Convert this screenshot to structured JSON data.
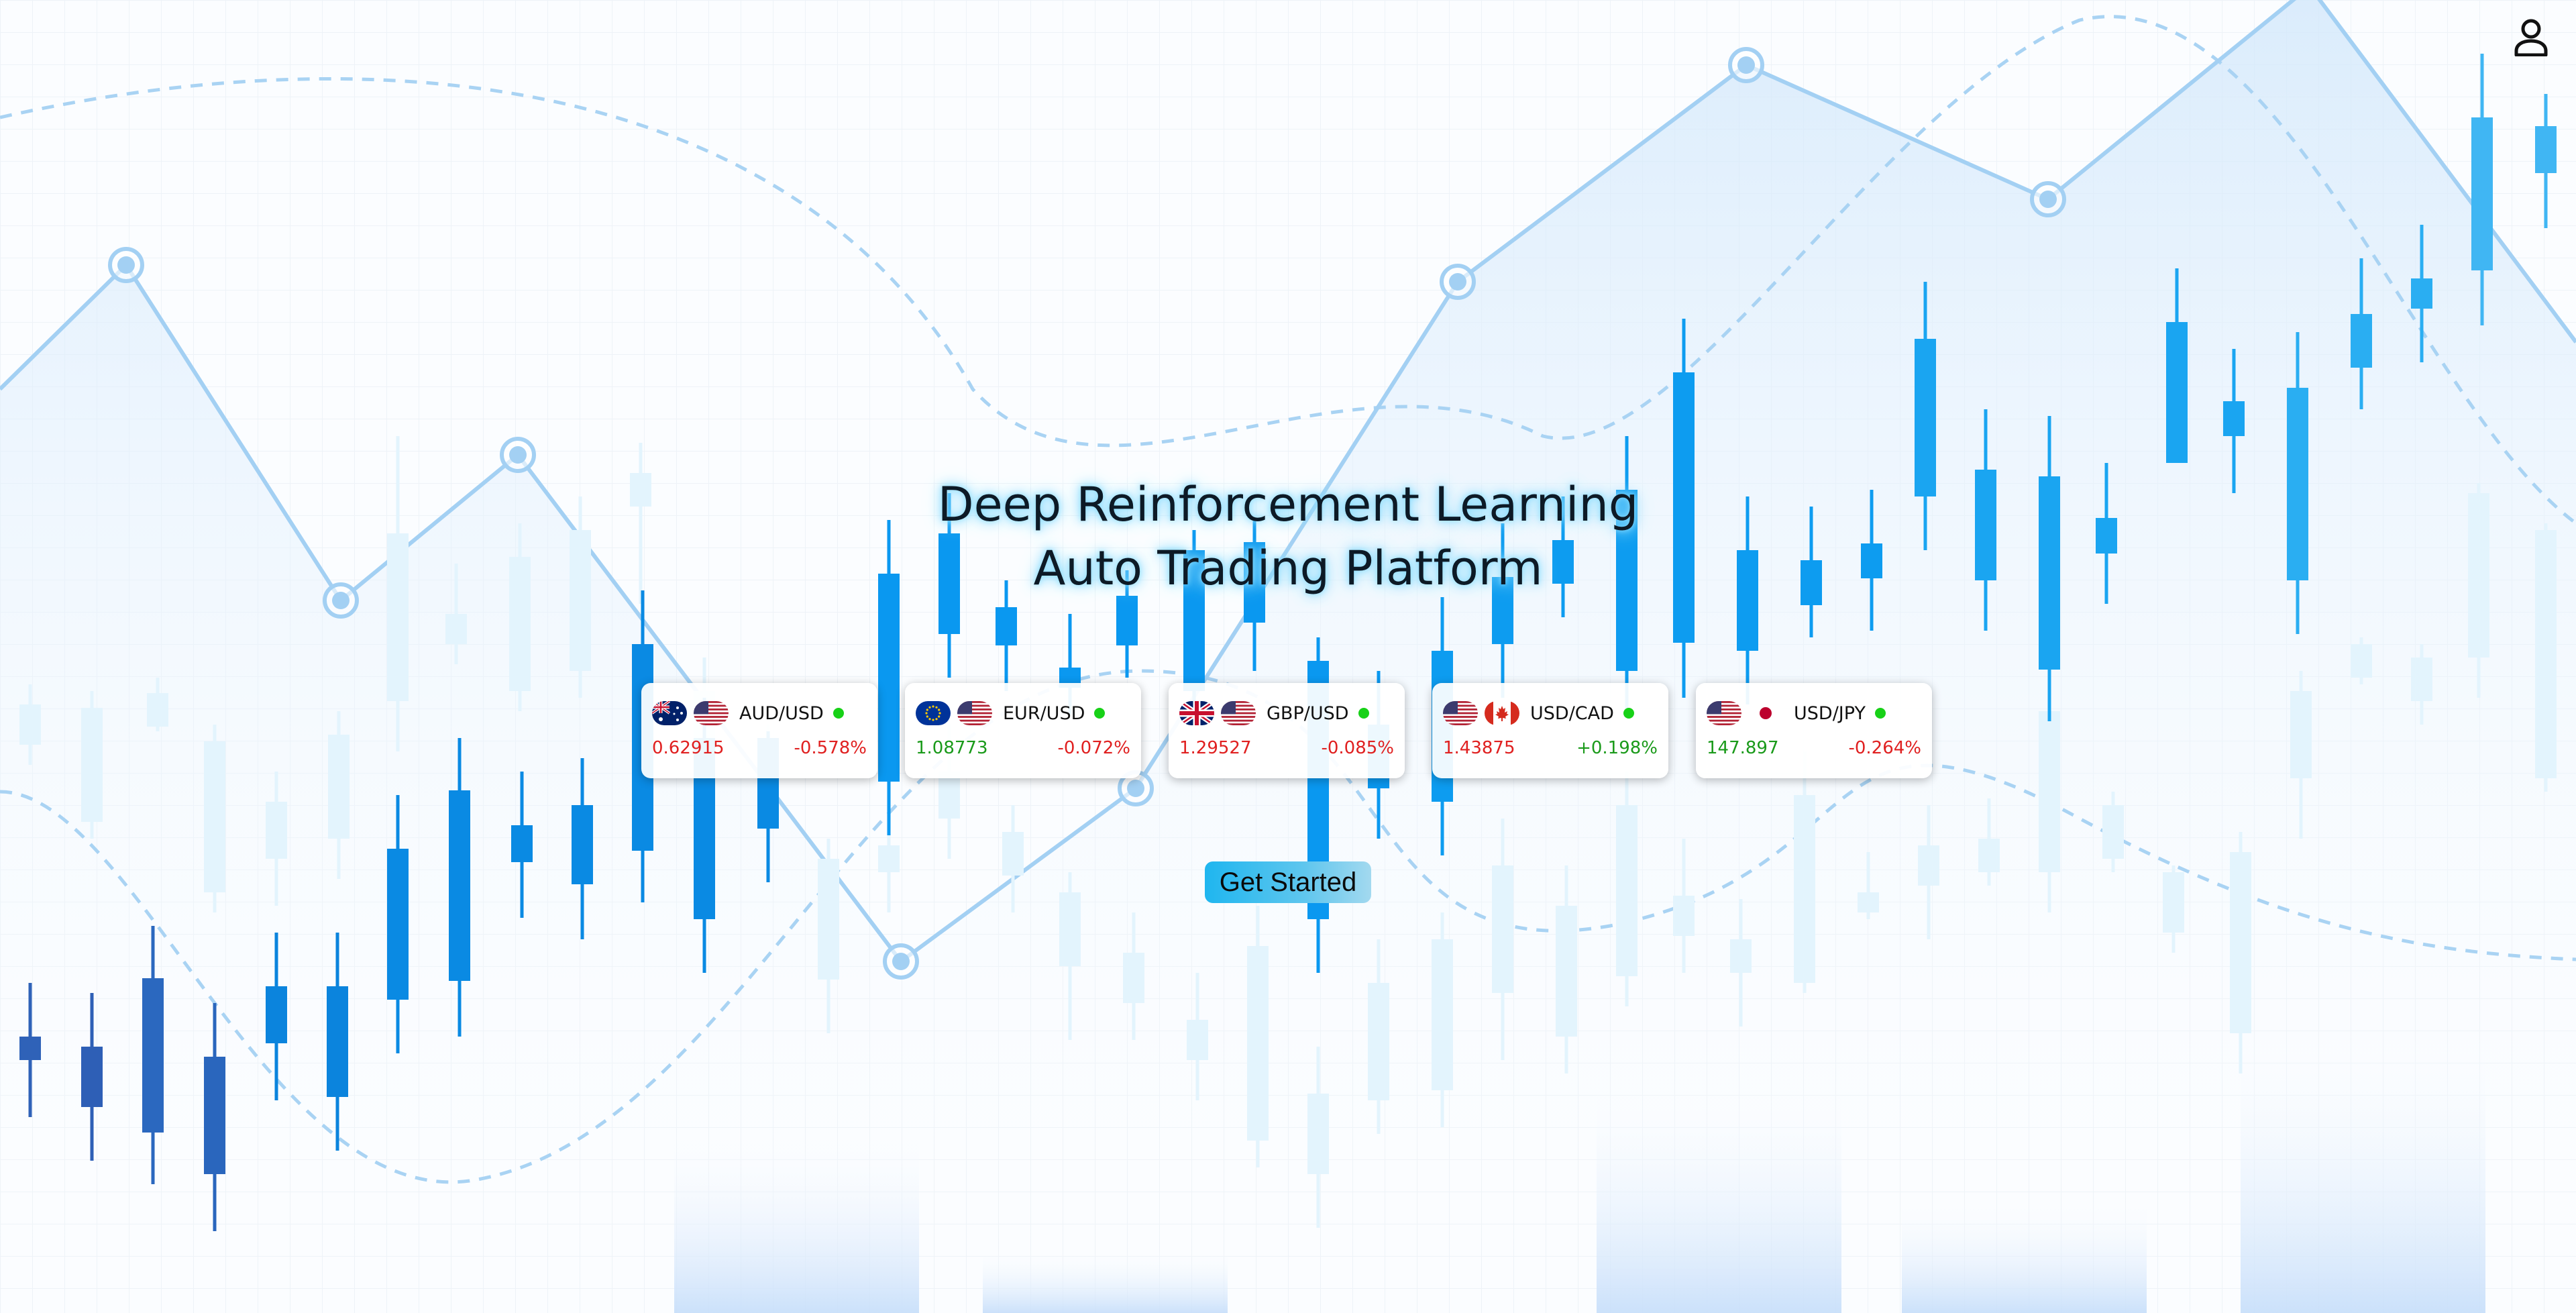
{
  "hero": {
    "title_line1": "Deep Reinforcement Learning",
    "title_line2": "Auto Trading Platform",
    "cta_label": "Get Started"
  },
  "header": {
    "user_icon": "user-icon"
  },
  "tickers": [
    {
      "pair": "AUD/USD",
      "price": "0.62915",
      "change": "-0.578%",
      "direction": "down",
      "flags": [
        "au",
        "us"
      ],
      "status": "live"
    },
    {
      "pair": "EUR/USD",
      "price": "1.08773",
      "change": "-0.072%",
      "direction": "up",
      "flags": [
        "eu",
        "us"
      ],
      "status": "live"
    },
    {
      "pair": "GBP/USD",
      "price": "1.29527",
      "change": "-0.085%",
      "direction": "down",
      "flags": [
        "gb",
        "us"
      ],
      "status": "live"
    },
    {
      "pair": "USD/CAD",
      "price": "1.43875",
      "change": "+0.198%",
      "direction": "down",
      "flags": [
        "us",
        "ca"
      ],
      "status": "live"
    },
    {
      "pair": "USD/JPY",
      "price": "147.897",
      "change": "-0.264%",
      "direction": "up",
      "flags": [
        "us",
        "jp"
      ],
      "status": "live"
    }
  ],
  "colors": {
    "price_up": "#1a9a1a",
    "price_down": "#e02020",
    "change_up": "#1a9a1a",
    "change_down": "#e02020",
    "live": "#17d117",
    "candle_main": "#0a8fe8",
    "candle_light": "#dff3fd"
  }
}
